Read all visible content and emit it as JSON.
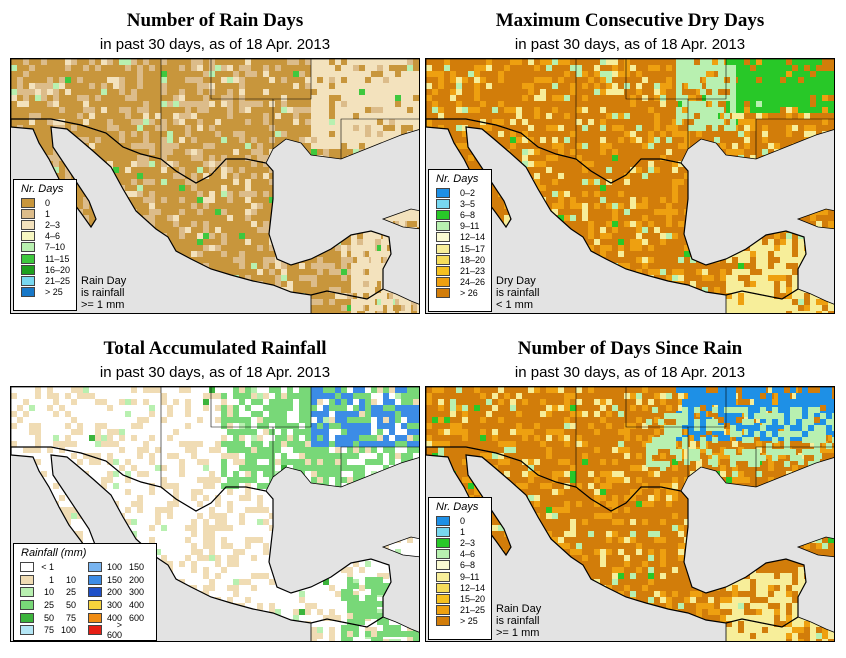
{
  "panels": [
    {
      "title": "Number of Rain Days",
      "subtitle": "in past 30 days, as of  18 Apr. 2013",
      "legend": {
        "title": "Nr. Days",
        "items": [
          {
            "label": "0",
            "color": "#c8963c"
          },
          {
            "label": "1",
            "color": "#dcbc8a"
          },
          {
            "label": "2–3",
            "color": "#f3e2bd"
          },
          {
            "label": "4–6",
            "color": "#f7f7c2"
          },
          {
            "label": "7–10",
            "color": "#b8f0b0"
          },
          {
            "label": "11–15",
            "color": "#3ec83e"
          },
          {
            "label": "16–20",
            "color": "#1ea01e"
          },
          {
            "label": "21–25",
            "color": "#78d8f0"
          },
          {
            "label": "> 25",
            "color": "#1878c8"
          }
        ]
      },
      "note": [
        "Rain Day",
        "is rainfall",
        ">= 1 mm"
      ],
      "colors": {
        "land": "#c8963c",
        "land_alt": "#dcbc8a",
        "pale": "#f3e2bd",
        "accent": "#b8f0b0",
        "accent2": "#3ec83e"
      }
    },
    {
      "title": "Maximum Consecutive Dry Days",
      "subtitle": "in past 30 days, as of  18 Apr. 2013",
      "legend": {
        "title": "Nr. Days",
        "items": [
          {
            "label": "0–2",
            "color": "#1e90e6"
          },
          {
            "label": "3–5",
            "color": "#78d8f0"
          },
          {
            "label": "6–8",
            "color": "#28c828"
          },
          {
            "label": "9–11",
            "color": "#b8f0b0"
          },
          {
            "label": "12–14",
            "color": "#fafad2"
          },
          {
            "label": "15–17",
            "color": "#f7ee9a"
          },
          {
            "label": "18–20",
            "color": "#f5dc5a"
          },
          {
            "label": "21–23",
            "color": "#f5c020"
          },
          {
            "label": "24–26",
            "color": "#eea010"
          },
          {
            "label": "> 26",
            "color": "#d27d0a"
          }
        ]
      },
      "note": [
        "Dry Day",
        "is rainfall",
        "< 1 mm"
      ],
      "colors": {
        "land": "#d27d0a",
        "land_alt": "#eea010",
        "pale": "#f7ee9a",
        "accent": "#b8f0b0",
        "accent2": "#28c828"
      }
    },
    {
      "title": "Total Accumulated Rainfall",
      "subtitle": "in past 30 days, as of  18 Apr. 2013",
      "legend": {
        "title": "Rainfall (mm)",
        "cols": [
          [
            {
              "a": "< 1",
              "b": "",
              "color": "#ffffff"
            },
            {
              "a": "1",
              "b": "10",
              "color": "#f0dcb4"
            },
            {
              "a": "10",
              "b": "25",
              "color": "#b8f0b0"
            },
            {
              "a": "25",
              "b": "50",
              "color": "#78d878"
            },
            {
              "a": "50",
              "b": "75",
              "color": "#3cb43c"
            },
            {
              "a": "75",
              "b": "100",
              "color": "#b4e6f5"
            }
          ],
          [
            {
              "a": "100",
              "b": "150",
              "color": "#78b4f0"
            },
            {
              "a": "150",
              "b": "200",
              "color": "#3c8ce6"
            },
            {
              "a": "200",
              "b": "300",
              "color": "#1e50c8"
            },
            {
              "a": "300",
              "b": "400",
              "color": "#f5d23c"
            },
            {
              "a": "400",
              "b": "600",
              "color": "#f08c14"
            },
            {
              "a": "> 600",
              "b": "",
              "color": "#e61e14"
            }
          ]
        ]
      },
      "colors": {
        "land": "#ffffff",
        "land_alt": "#f0dcb4",
        "pale": "#f0dcb4",
        "accent": "#b8f0b0",
        "accent2": "#3cb43c"
      }
    },
    {
      "title": "Number of Days Since Rain",
      "subtitle": "in past 30 days, as of  18 Apr. 2013",
      "legend": {
        "title": "Nr. Days",
        "items": [
          {
            "label": "0",
            "color": "#1e90e6"
          },
          {
            "label": "1",
            "color": "#78d8f0"
          },
          {
            "label": "2–3",
            "color": "#28c828"
          },
          {
            "label": "4–6",
            "color": "#b8f0b0"
          },
          {
            "label": "6–8",
            "color": "#fafad2"
          },
          {
            "label": "9–11",
            "color": "#f7ee9a"
          },
          {
            "label": "12–14",
            "color": "#f5dc5a"
          },
          {
            "label": "15–20",
            "color": "#f5c020"
          },
          {
            "label": "21–25",
            "color": "#eea010"
          },
          {
            "label": "> 25",
            "color": "#d27d0a"
          }
        ]
      },
      "note": [
        "Rain Day",
        "is rainfall",
        ">= 1 mm"
      ],
      "colors": {
        "land": "#d27d0a",
        "land_alt": "#eea010",
        "pale": "#f7ee9a",
        "accent": "#b8f0b0",
        "accent2": "#28c828"
      }
    }
  ]
}
